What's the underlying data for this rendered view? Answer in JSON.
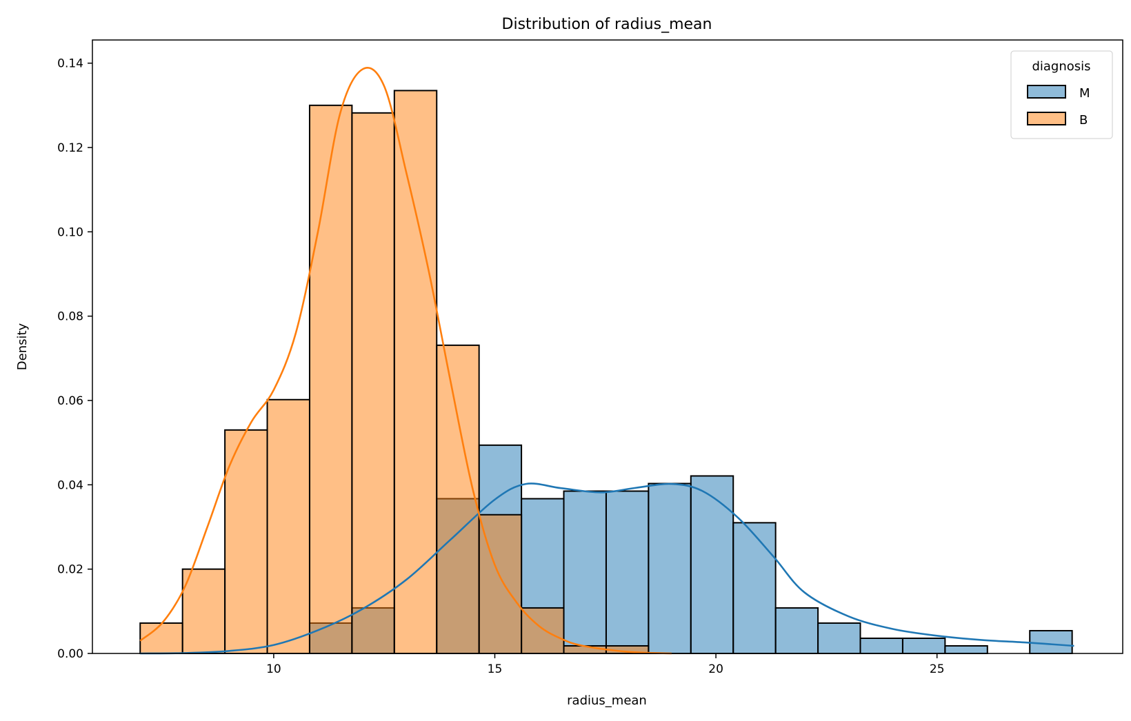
{
  "chart_data": {
    "type": "histogram",
    "title": "Distribution of radius_mean",
    "xlabel": "radius_mean",
    "ylabel": "Density",
    "xlim": [
      5.9,
      29.2
    ],
    "ylim": [
      0,
      0.1455
    ],
    "xticks": [
      10,
      15,
      20,
      25
    ],
    "yticks": [
      0.0,
      0.02,
      0.04,
      0.06,
      0.08,
      0.1,
      0.12,
      0.14
    ],
    "ytick_labels": [
      "0.00",
      "0.02",
      "0.04",
      "0.06",
      "0.08",
      "0.10",
      "0.12",
      "0.14"
    ],
    "bin_start": 6.98,
    "bin_width": 0.958,
    "legend": {
      "title": "diagnosis",
      "position": "top-right",
      "entries": [
        "M",
        "B"
      ]
    },
    "series": [
      {
        "name": "M",
        "color": "#1f77b4",
        "values": [
          0,
          0,
          0,
          0,
          0.0072,
          0.0108,
          0,
          0.0367,
          0.0494,
          0.0367,
          0.0385,
          0.0385,
          0.0403,
          0.0421,
          0.031,
          0.0108,
          0.0072,
          0.0036,
          0.0036,
          0.0018,
          0,
          0.0054
        ],
        "kde_x": [
          6.98,
          8,
          9,
          10,
          11,
          12,
          13,
          14,
          15,
          15.7,
          16.5,
          17.4,
          18.2,
          19,
          19.7,
          20.5,
          21.3,
          22,
          23,
          24,
          25,
          26,
          27,
          28.1
        ],
        "kde_y": [
          0.0,
          0.0001,
          0.0006,
          0.002,
          0.0055,
          0.0105,
          0.0175,
          0.027,
          0.0365,
          0.0402,
          0.0392,
          0.0382,
          0.0393,
          0.0402,
          0.0385,
          0.0322,
          0.023,
          0.0145,
          0.0088,
          0.0058,
          0.0042,
          0.0032,
          0.0026,
          0.0018
        ]
      },
      {
        "name": "B",
        "color": "#ff7f0e",
        "values": [
          0.0072,
          0.02,
          0.053,
          0.0602,
          0.13,
          0.1282,
          0.1335,
          0.0731,
          0.0329,
          0.0108,
          0.0018,
          0.0018,
          0,
          0,
          0,
          0,
          0,
          0,
          0,
          0,
          0,
          0
        ],
        "kde_x": [
          6.98,
          7.5,
          8,
          8.5,
          9,
          9.5,
          10,
          10.5,
          11,
          11.5,
          12,
          12.5,
          13,
          13.5,
          14,
          14.5,
          15,
          15.5,
          16,
          16.5,
          17,
          18,
          19
        ],
        "kde_y": [
          0.003,
          0.0075,
          0.016,
          0.03,
          0.0445,
          0.055,
          0.0625,
          0.076,
          0.1,
          0.128,
          0.1385,
          0.1345,
          0.114,
          0.091,
          0.0645,
          0.039,
          0.021,
          0.012,
          0.0065,
          0.0035,
          0.0018,
          0.0004,
          0.0
        ]
      }
    ],
    "overlap_color": "#8f9aa0"
  }
}
